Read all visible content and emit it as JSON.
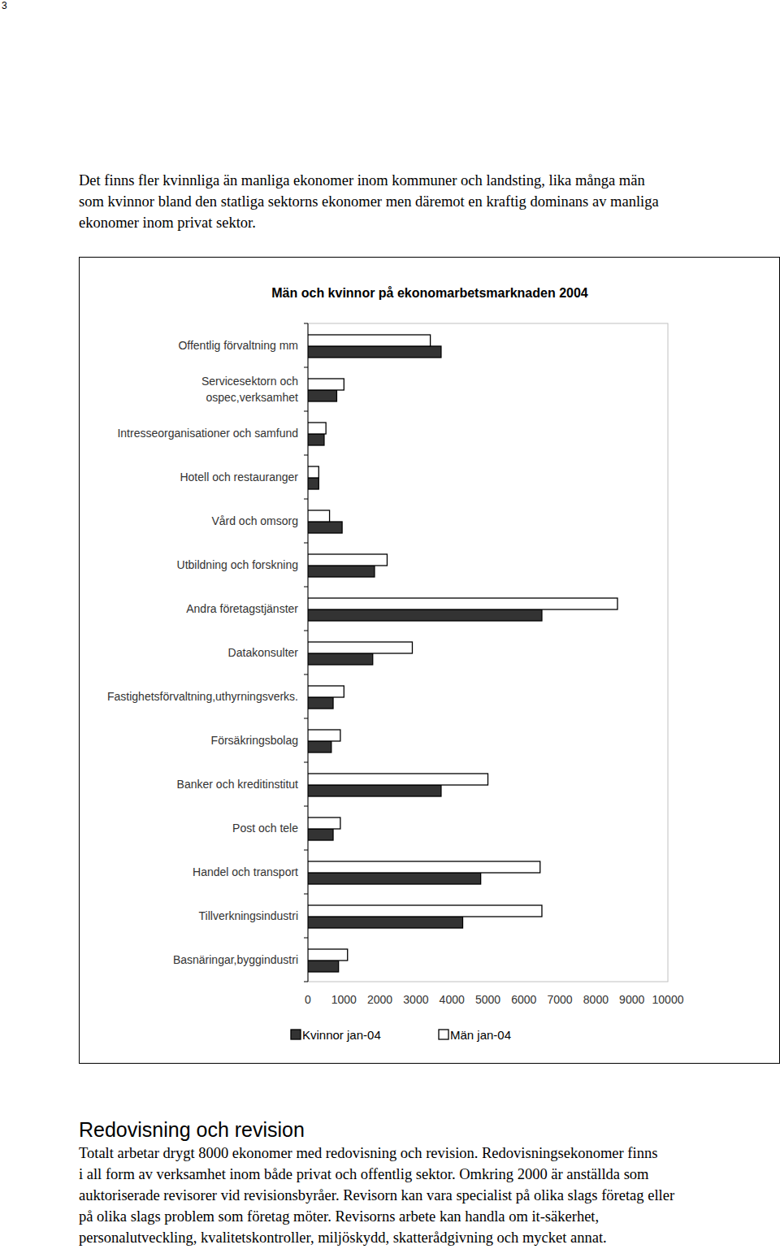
{
  "page_number": 3,
  "intro": {
    "lines": [
      "Det finns fler kvinnliga än manliga ekonomer inom kommuner och landsting, lika många män",
      "som kvinnor bland den statliga sektorns ekonomer men däremot en kraftig dominans av manliga",
      "ekonomer inom privat sektor."
    ]
  },
  "chart_data": {
    "type": "bar",
    "title": "Män och kvinnor på ekonomarbetsmarknaden 2004",
    "orientation": "horizontal",
    "categories": [
      "Offentlig förvaltning mm",
      "Servicesektorn och\nospec,verksamhet",
      "Intresseorganisationer och samfund",
      "Hotell och restauranger",
      "Vård och omsorg",
      "Utbildning och forskning",
      "Andra företagstjänster",
      "Datakonsulter",
      "Fastighetsförvaltning,uthyrningsverks.",
      "Försäkringsbolag",
      "Banker och kreditinstitut",
      "Post och tele",
      "Handel och transport",
      "Tillverkningsindustri",
      "Basnäringar,byggindustri"
    ],
    "series": [
      {
        "name": "Kvinnor jan-04",
        "color": "#333333",
        "values": [
          3700,
          800,
          450,
          300,
          950,
          1850,
          6500,
          1800,
          700,
          650,
          3700,
          700,
          4800,
          4300,
          850
        ]
      },
      {
        "name": "Män jan-04",
        "color": "#ffffff",
        "values": [
          3400,
          1000,
          500,
          300,
          600,
          2200,
          8600,
          2900,
          1000,
          900,
          5000,
          900,
          6450,
          6500,
          1100
        ]
      }
    ],
    "xlim": [
      0,
      10000
    ],
    "xticks": [
      0,
      1000,
      2000,
      3000,
      4000,
      5000,
      6000,
      7000,
      8000,
      9000,
      10000
    ],
    "grid": false,
    "legend": "bottom"
  },
  "section": {
    "heading": "Redovisning och revision",
    "lines": [
      "Totalt arbetar drygt 8000 ekonomer med redovisning och revision. Redovisningsekonomer finns",
      "i all form av verksamhet inom både privat och offentlig sektor. Omkring 2000 är anställda som",
      "auktoriserade revisorer vid revisionsbyråer. Revisorn kan vara specialist på olika slags företag eller",
      "på olika slags problem som företag möter. Revisorns arbete kan handla om it-säkerhet,",
      "personalutveckling, kvalitetskontroller, miljöskydd, skatterådgivning och mycket annat."
    ]
  }
}
